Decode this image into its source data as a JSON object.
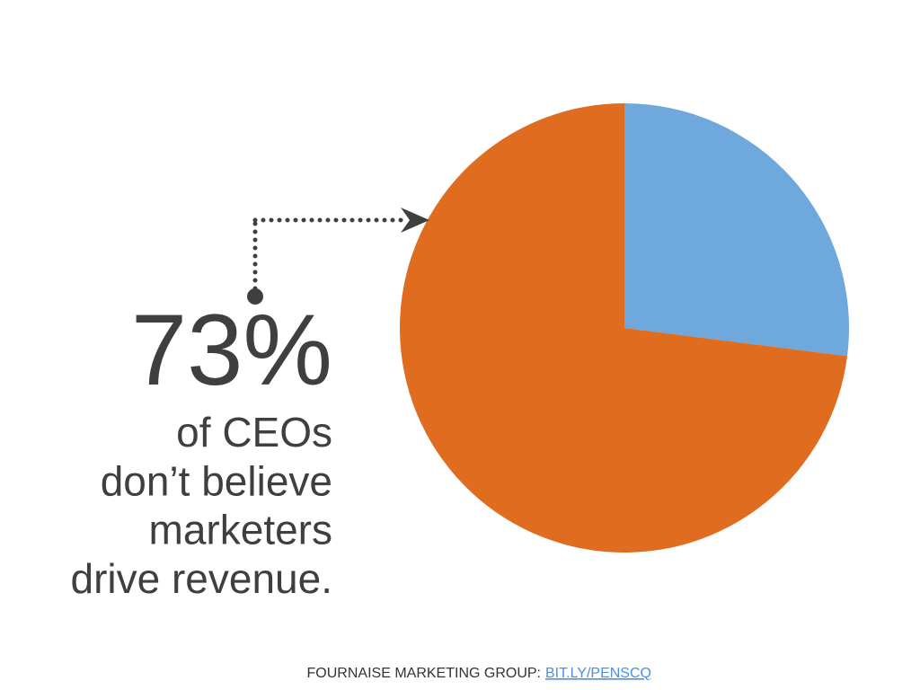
{
  "chart_data": {
    "type": "pie",
    "values": [
      27,
      73
    ],
    "value_labels": [
      null,
      "73%"
    ],
    "colors": [
      "#6fa8dc",
      "#e06c1f"
    ],
    "annotation_lines": [
      "of CEOs",
      "don’t believe",
      "marketers",
      "drive revenue."
    ],
    "source": {
      "text": "FOURNAISE MARKETING GROUP:",
      "link": "BIT.LY/PENSCQ"
    }
  }
}
